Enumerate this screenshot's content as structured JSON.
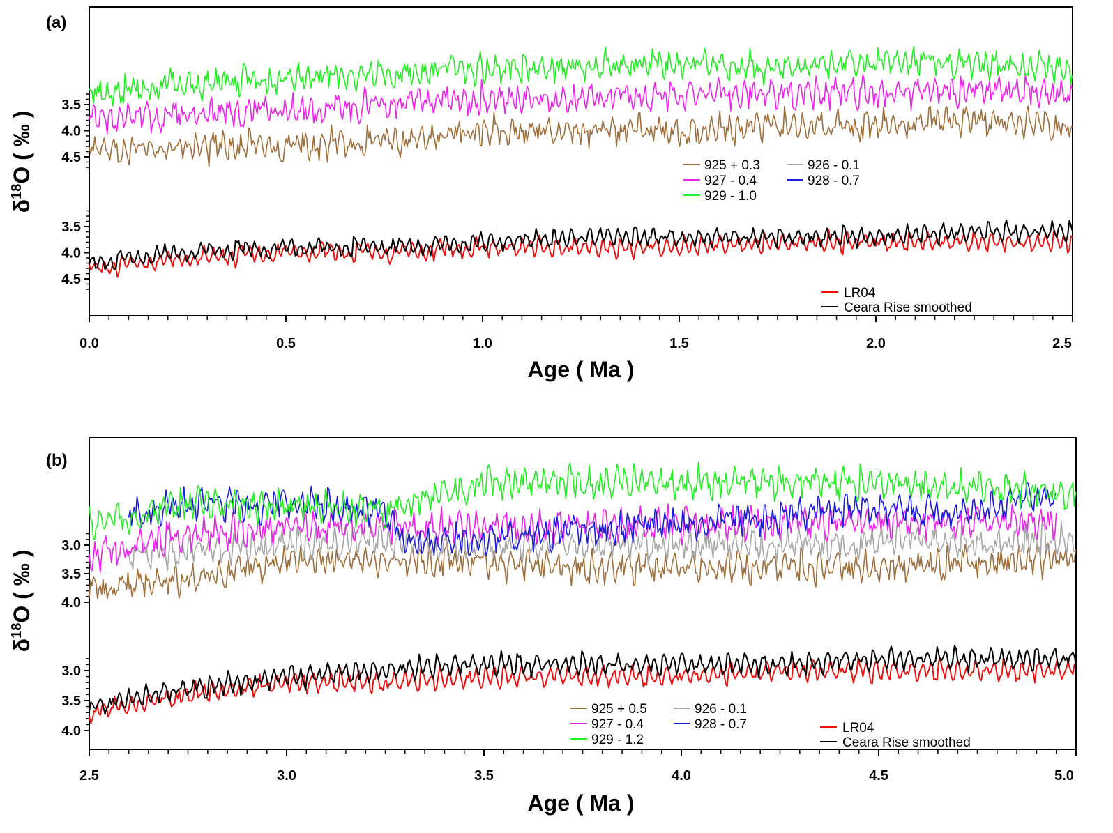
{
  "colors": {
    "925": "#a0703c",
    "926": "#a8a8a8",
    "927": "#ee22ee",
    "928": "#1c1cdc",
    "929": "#22ee22",
    "LR04": "#ee1111",
    "ceara": "#000000"
  },
  "chart_data": [
    {
      "type": "line",
      "panel_label": "(a)",
      "xlabel": "Age ( Ma )",
      "ylabel_main": "δ",
      "ylabel_sup": "18",
      "ylabel_rest": "O ( ‰ )",
      "xlim": [
        0.0,
        2.5
      ],
      "x_ticks": [
        "0.0",
        "0.5",
        "1.0",
        "1.5",
        "2.0",
        "2.5"
      ],
      "y_axis_note": "inverted δ18O axis, two stacked offset groups",
      "upper_group_ticks": [
        "3.5",
        "4.0",
        "4.5"
      ],
      "lower_group_ticks": [
        "3.5",
        "4.0",
        "4.5"
      ],
      "legend_sites": [
        "925 + 0.3",
        "926 - 0.1",
        "927 - 0.4",
        "928 - 0.7",
        "929 - 1.0"
      ],
      "legend_stacks": [
        "LR04",
        "Ceara Rise smoothed"
      ],
      "series": [
        {
          "name": "925 + 0.3",
          "key": "925",
          "group": "upper",
          "x": [
            0.0,
            0.25,
            0.5,
            0.75,
            1.0,
            1.25,
            1.5,
            1.75,
            2.0,
            2.25,
            2.5
          ],
          "values": [
            4.4,
            4.3,
            4.3,
            4.2,
            4.0,
            4.0,
            4.0,
            3.9,
            3.9,
            3.8,
            3.9
          ]
        },
        {
          "name": "927 - 0.4",
          "key": "927",
          "group": "upper",
          "x": [
            0.0,
            0.25,
            0.5,
            0.75,
            1.0,
            1.25,
            1.5,
            1.75,
            2.0,
            2.25,
            2.5
          ],
          "values": [
            3.8,
            3.7,
            3.6,
            3.5,
            3.4,
            3.4,
            3.3,
            3.3,
            3.3,
            3.2,
            3.3
          ]
        },
        {
          "name": "929 - 1.0",
          "key": "929",
          "group": "upper",
          "x": [
            0.0,
            0.25,
            0.5,
            0.75,
            1.0,
            1.25,
            1.5,
            1.75,
            2.0,
            2.25,
            2.5
          ],
          "values": [
            3.3,
            3.1,
            3.0,
            2.9,
            2.8,
            2.8,
            2.7,
            2.8,
            2.7,
            2.7,
            2.8
          ]
        },
        {
          "name": "LR04",
          "key": "LR04",
          "group": "lower",
          "x": [
            0.0,
            0.25,
            0.5,
            0.75,
            1.0,
            1.25,
            1.5,
            1.75,
            2.0,
            2.25,
            2.5
          ],
          "values": [
            4.3,
            4.1,
            4.0,
            4.0,
            3.9,
            3.9,
            3.9,
            3.8,
            3.8,
            3.8,
            3.8
          ]
        },
        {
          "name": "Ceara Rise smoothed",
          "key": "ceara",
          "group": "lower",
          "x": [
            0.0,
            0.25,
            0.5,
            0.75,
            1.0,
            1.25,
            1.5,
            1.75,
            2.0,
            2.25,
            2.5
          ],
          "values": [
            4.2,
            4.0,
            3.9,
            3.9,
            3.8,
            3.7,
            3.7,
            3.7,
            3.7,
            3.6,
            3.6
          ]
        }
      ]
    },
    {
      "type": "line",
      "panel_label": "(b)",
      "xlabel": "Age ( Ma )",
      "ylabel_main": "δ",
      "ylabel_sup": "18",
      "ylabel_rest": "O ( ‰ )",
      "xlim": [
        2.5,
        5.0
      ],
      "x_ticks": [
        "2.5",
        "3.0",
        "3.5",
        "4.0",
        "4.5",
        "5.0"
      ],
      "y_axis_note": "inverted δ18O axis, two stacked offset groups",
      "upper_group_ticks": [
        "3.0",
        "3.5",
        "4.0"
      ],
      "lower_group_ticks": [
        "3.0",
        "3.5",
        "4.0"
      ],
      "legend_sites": [
        "925 + 0.5",
        "926 - 0.1",
        "927 - 0.4",
        "928 - 0.7",
        "929 - 1.2"
      ],
      "legend_stacks": [
        "LR04",
        "Ceara Rise smoothed"
      ],
      "series": [
        {
          "name": "925 + 0.5",
          "key": "925",
          "group": "upper",
          "x": [
            2.5,
            2.75,
            3.0,
            3.25,
            3.5,
            3.75,
            4.0,
            4.25,
            4.5,
            4.75,
            5.0
          ],
          "values": [
            3.8,
            3.6,
            3.3,
            3.3,
            3.3,
            3.4,
            3.4,
            3.4,
            3.4,
            3.3,
            3.2
          ]
        },
        {
          "name": "926 - 0.1",
          "key": "926",
          "group": "upper",
          "x": [
            2.6,
            2.75,
            3.0,
            3.25,
            3.35,
            4.4,
            4.6,
            4.8,
            5.0
          ],
          "values": [
            3.2,
            3.1,
            3.0,
            2.9,
            3.0,
            3.0,
            2.9,
            3.0,
            2.9
          ]
        },
        {
          "name": "927 - 0.4",
          "key": "927",
          "group": "upper",
          "x": [
            2.5,
            2.75,
            3.0,
            3.25,
            3.3,
            4.45,
            4.6,
            4.8,
            4.95
          ],
          "values": [
            3.2,
            2.8,
            2.7,
            2.6,
            2.7,
            2.6,
            2.6,
            2.6,
            2.6
          ]
        },
        {
          "name": "928 - 0.7",
          "key": "928",
          "group": "upper",
          "x": [
            2.6,
            2.75,
            3.0,
            3.25,
            3.3,
            4.4,
            4.5,
            4.7,
            4.85,
            4.95
          ],
          "values": [
            2.5,
            2.3,
            2.3,
            2.4,
            3.0,
            2.4,
            2.3,
            2.5,
            2.2,
            2.2
          ]
        },
        {
          "name": "929 - 1.2",
          "key": "929",
          "group": "upper",
          "x": [
            2.5,
            2.75,
            3.0,
            3.25,
            3.5,
            3.75,
            4.0,
            4.25,
            4.5,
            4.75,
            5.0
          ],
          "values": [
            2.6,
            2.3,
            2.3,
            2.4,
            1.9,
            1.9,
            1.9,
            1.9,
            1.9,
            2.0,
            2.1
          ]
        },
        {
          "name": "LR04",
          "key": "LR04",
          "group": "lower",
          "x": [
            2.5,
            2.75,
            3.0,
            3.25,
            3.5,
            3.75,
            4.0,
            4.25,
            4.5,
            4.75,
            5.0
          ],
          "values": [
            3.7,
            3.4,
            3.2,
            3.2,
            3.1,
            3.1,
            3.1,
            3.0,
            3.0,
            3.0,
            3.0
          ]
        },
        {
          "name": "Ceara Rise smoothed",
          "key": "ceara",
          "group": "lower",
          "x": [
            2.5,
            2.75,
            3.0,
            3.25,
            3.5,
            3.75,
            4.0,
            4.25,
            4.5,
            4.75,
            5.0
          ],
          "values": [
            3.6,
            3.3,
            3.1,
            3.0,
            2.9,
            2.9,
            2.9,
            2.9,
            2.8,
            2.8,
            2.8
          ]
        }
      ]
    }
  ]
}
